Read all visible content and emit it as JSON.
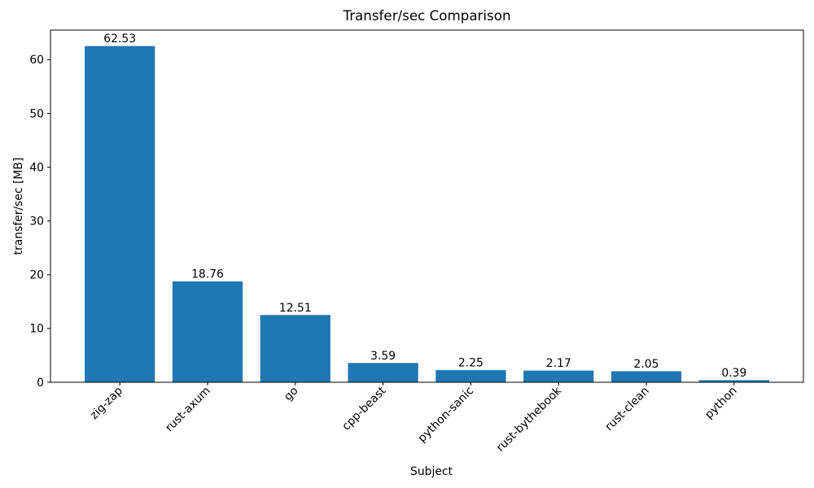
{
  "chart_data": {
    "type": "bar",
    "title": "Transfer/sec Comparison",
    "xlabel": "Subject",
    "ylabel": "transfer/sec [MB]",
    "categories": [
      "zig-zap",
      "rust-axum",
      "go",
      "cpp-beast",
      "python-sanic",
      "rust-bythebook",
      "rust-clean",
      "python"
    ],
    "values": [
      62.53,
      18.76,
      12.51,
      3.59,
      2.25,
      2.17,
      2.05,
      0.39
    ],
    "value_labels": [
      "62.53",
      "18.76",
      "12.51",
      "3.59",
      "2.25",
      "2.17",
      "2.05",
      "0.39"
    ],
    "ylim": [
      0,
      65.5
    ],
    "yticks": [
      0,
      10,
      20,
      30,
      40,
      50,
      60
    ],
    "x_tick_rotation": 45,
    "grid": false,
    "legend": "none",
    "bar_color": "#1f77b4",
    "axis_color": "#000000",
    "text_color": "#000000",
    "background_color": "#ffffff"
  }
}
